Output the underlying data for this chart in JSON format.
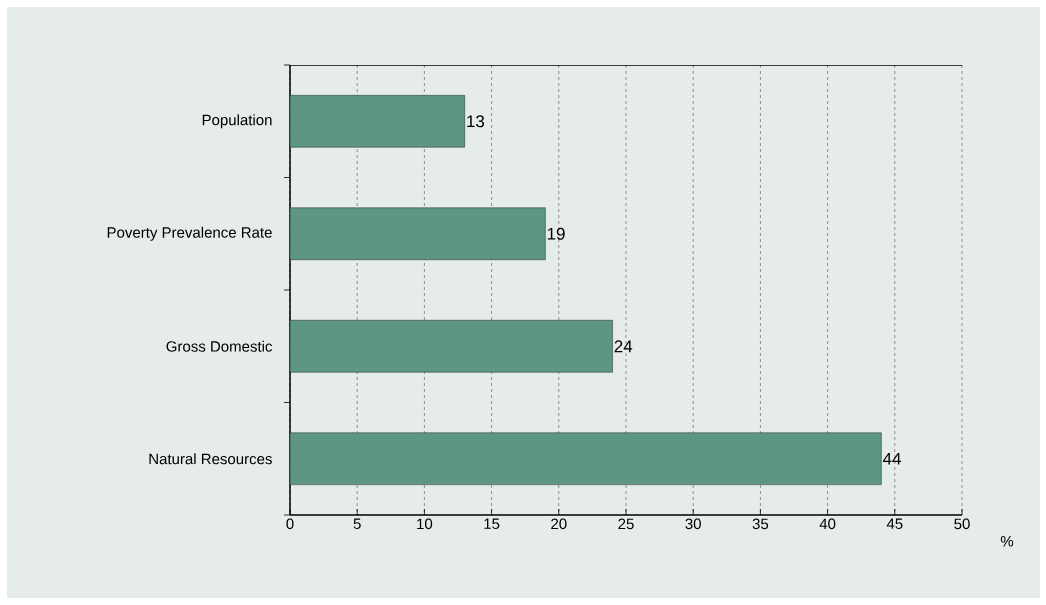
{
  "chart_data": {
    "type": "bar",
    "orientation": "horizontal",
    "categories": [
      "Population",
      "Poverty Prevalence Rate",
      "Gross Domestic",
      "Natural Resources"
    ],
    "values": [
      13,
      19,
      24,
      44
    ],
    "color": "#5e9684",
    "xlabel": "%",
    "xlim": [
      0,
      50
    ],
    "xticks": [
      0,
      5,
      10,
      15,
      20,
      25,
      30,
      35,
      40,
      45,
      50
    ],
    "grid": "x",
    "data_labels": true
  }
}
